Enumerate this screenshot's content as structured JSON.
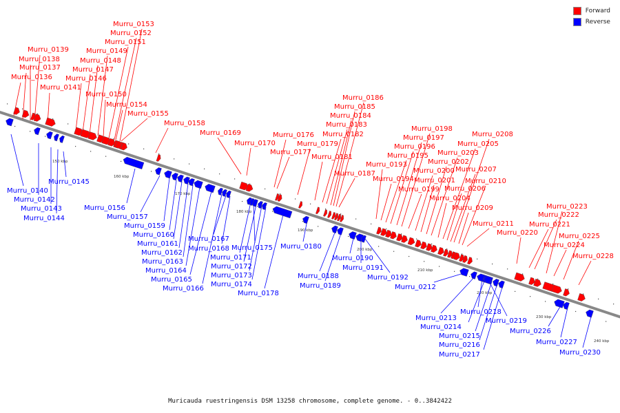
{
  "legend": [
    {
      "label": "Forward",
      "color": "#ff0000"
    },
    {
      "label": "Reverse",
      "color": "#0000ff"
    }
  ],
  "caption": "Muricauda ruestringensis DSM 13258 chromosome, complete genome. - 0..3842422",
  "ticks": [
    "150 kbp",
    "160 kbp",
    "170 kbp",
    "180 kbp",
    "190 kbp",
    "200 kbp",
    "210 kbp",
    "220 kbp",
    "230 kbp",
    "240 kbp"
  ],
  "forward_genes": [
    "Murru_0136",
    "Murru_0137",
    "Murru_0138",
    "Murru_0139",
    "Murru_0141",
    "Murru_0146",
    "Murru_0147",
    "Murru_0148",
    "Murru_0149",
    "Murru_0150",
    "Murru_0151",
    "Murru_0152",
    "Murru_0153",
    "Murru_0154",
    "Murru_0155",
    "Murru_0158",
    "Murru_0169",
    "Murru_0170",
    "Murru_0176",
    "Murru_0177",
    "Murru_0179",
    "Murru_0181",
    "Murru_0182",
    "Murru_0183",
    "Murru_0184",
    "Murru_0185",
    "Murru_0186",
    "Murru_0187",
    "Murru_0193",
    "Murru_0194",
    "Murru_0195",
    "Murru_0196",
    "Murru_0197",
    "Murru_0198",
    "Murru_0199",
    "Murru_0200",
    "Murru_0201",
    "Murru_0202",
    "Murru_0203",
    "Murru_0204",
    "Murru_0205",
    "Murru_0206",
    "Murru_0207",
    "Murru_0208",
    "Murru_0209",
    "Murru_0210",
    "Murru_0211",
    "Murru_0220",
    "Murru_0221",
    "Murru_0222",
    "Murru_0223",
    "Murru_0224",
    "Murru_0225",
    "Murru_0228"
  ],
  "reverse_genes": [
    "Murru_0140",
    "Murru_0142",
    "Murru_0143",
    "Murru_0144",
    "Murru_0145",
    "Murru_0156",
    "Murru_0157",
    "Murru_0159",
    "Murru_0160",
    "Murru_0161",
    "Murru_0162",
    "Murru_0163",
    "Murru_0164",
    "Murru_0165",
    "Murru_0166",
    "Murru_0167",
    "Murru_0168",
    "Murru_0171",
    "Murru_0172",
    "Murru_0173",
    "Murru_0174",
    "Murru_0175",
    "Murru_0178",
    "Murru_0180",
    "Murru_0188",
    "Murru_0189",
    "Murru_0190",
    "Murru_0191",
    "Murru_0192",
    "Murru_0212",
    "Murru_0213",
    "Murru_0214",
    "Murru_0215",
    "Murru_0216",
    "Murru_0217",
    "Murru_0218",
    "Murru_0219",
    "Murru_0226",
    "Murru_0227",
    "Murru_0230"
  ]
}
